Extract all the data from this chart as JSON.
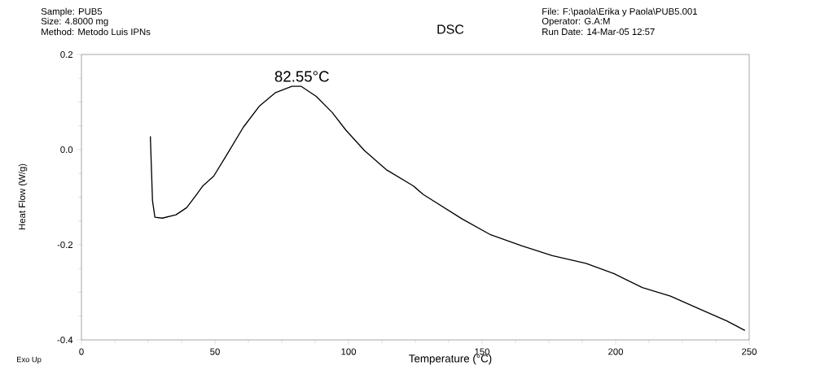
{
  "chart_data": {
    "type": "line",
    "title": "DSC",
    "xlabel": "Temperature (°C)",
    "ylabel": "Heat Flow (W/g)",
    "annotations": [
      {
        "text": "82.55°C",
        "x": 82.55,
        "y": 0.133
      },
      "Sample: PUB5",
      "Size:   4.8000 mg",
      "Method: Metodo Luis IPNs",
      "File: F:\\paola\\Erika y Paola\\PUB5.001",
      "Operator: G.A:M",
      "Run Date: 14-Mar-05 12:57",
      "Exo Up"
    ],
    "x": [
      25.8,
      26.6,
      27.5,
      30.3,
      35.4,
      39.4,
      42.9,
      45.5,
      49.5,
      54.5,
      60.6,
      66.7,
      72.7,
      78.8,
      82.3,
      87.9,
      93.9,
      99,
      106,
      114.1,
      124.2,
      127.9,
      142.6,
      153.2,
      164.7,
      176.3,
      188.9,
      199.5,
      210,
      220.5,
      231,
      241.6,
      248.4
    ],
    "series": [
      {
        "color": "#000000",
        "values": [
          0.028,
          -0.107,
          -0.142,
          -0.144,
          -0.137,
          -0.122,
          -0.096,
          -0.076,
          -0.056,
          -0.01,
          0.047,
          0.092,
          0.12,
          0.133,
          0.133,
          0.112,
          0.078,
          0.041,
          -0.002,
          -0.042,
          -0.076,
          -0.094,
          -0.146,
          -0.179,
          -0.202,
          -0.223,
          -0.239,
          -0.261,
          -0.29,
          -0.308,
          -0.334,
          -0.36,
          -0.38
        ]
      }
    ],
    "xlim": [
      0,
      250
    ],
    "ylim": [
      -0.4,
      0.2
    ],
    "xticks": [
      0,
      50,
      100,
      150,
      200,
      250
    ],
    "yticks": [
      {
        "value": -0.4,
        "label": "-0.4"
      },
      {
        "value": -0.2,
        "label": "-0.2"
      },
      {
        "value": 0,
        "label": "0.0"
      },
      {
        "value": 0.2,
        "label": "0.2"
      }
    ],
    "grid": false,
    "marker": "none",
    "line_style": "solid"
  }
}
